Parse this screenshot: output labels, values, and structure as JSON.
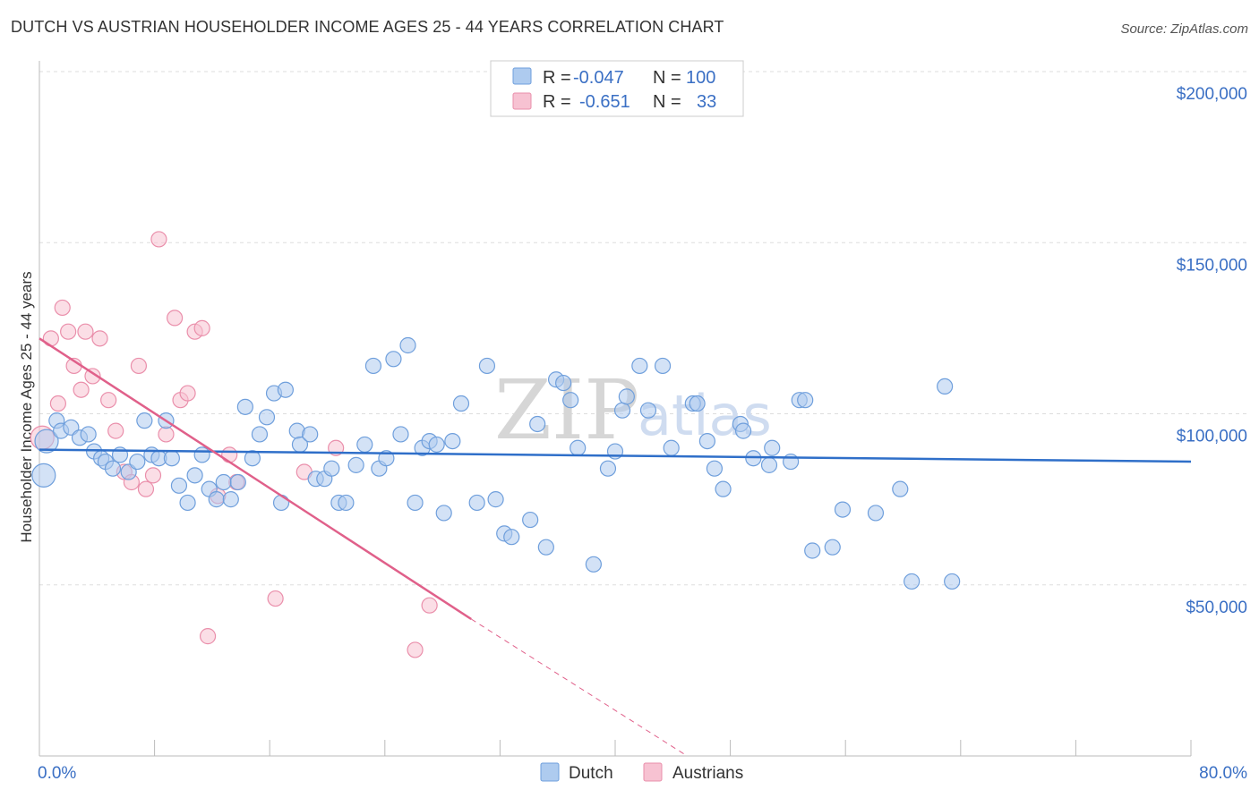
{
  "title": "DUTCH VS AUSTRIAN HOUSEHOLDER INCOME AGES 25 - 44 YEARS CORRELATION CHART",
  "source": "Source: ZipAtlas.com",
  "watermark": {
    "zip": "ZIP",
    "atlas": "atlas"
  },
  "stats": [
    {
      "r_label": "R =",
      "r_value": "-0.047",
      "n_label": "N =",
      "n_value": "100"
    },
    {
      "r_label": "R =",
      "r_value": "-0.651",
      "n_label": "N =",
      "n_value": "33"
    }
  ],
  "colors": {
    "dutch_fill": "#aecbef",
    "dutch_stroke": "#6f9fdc",
    "dutch_line": "#2f6fc9",
    "austrian_fill": "#f7c2d2",
    "austrian_stroke": "#ea8fab",
    "austrian_line": "#e0608a",
    "grid": "#dddddd",
    "axis": "#bbbbbb",
    "tick_text": "#3a6fc4"
  },
  "chart_data": {
    "type": "scatter",
    "title": "DUTCH VS AUSTRIAN HOUSEHOLDER INCOME AGES 25 - 44 YEARS CORRELATION CHART",
    "xlabel": "",
    "ylabel": "Householder Income Ages 25 - 44 years",
    "xlim": [
      0,
      80
    ],
    "ylim": [
      0,
      200000
    ],
    "x_tick_labels": [
      "0.0%",
      "80.0%"
    ],
    "y_ticks": [
      50000,
      100000,
      150000,
      200000
    ],
    "y_tick_labels": [
      "$50,000",
      "$100,000",
      "$150,000",
      "$200,000"
    ],
    "grid": true,
    "legend_position": "bottom-center",
    "series": [
      {
        "name": "Dutch",
        "trend": {
          "x": [
            0,
            80
          ],
          "y": [
            89500,
            86000
          ]
        },
        "points": [
          [
            0.3,
            82000
          ],
          [
            0.5,
            92000
          ],
          [
            1.2,
            98000
          ],
          [
            1.5,
            95000
          ],
          [
            2.2,
            96000
          ],
          [
            2.8,
            93000
          ],
          [
            3.4,
            94000
          ],
          [
            3.8,
            89000
          ],
          [
            4.3,
            87000
          ],
          [
            4.6,
            86000
          ],
          [
            5.1,
            84000
          ],
          [
            5.6,
            88000
          ],
          [
            6.2,
            83000
          ],
          [
            6.8,
            86000
          ],
          [
            7.3,
            98000
          ],
          [
            7.8,
            88000
          ],
          [
            8.3,
            87000
          ],
          [
            8.8,
            98000
          ],
          [
            9.2,
            87000
          ],
          [
            9.7,
            79000
          ],
          [
            10.3,
            74000
          ],
          [
            10.8,
            82000
          ],
          [
            11.3,
            88000
          ],
          [
            11.8,
            78000
          ],
          [
            12.3,
            75000
          ],
          [
            12.8,
            80000
          ],
          [
            13.3,
            75000
          ],
          [
            13.8,
            80000
          ],
          [
            14.3,
            102000
          ],
          [
            14.8,
            87000
          ],
          [
            15.3,
            94000
          ],
          [
            15.8,
            99000
          ],
          [
            16.3,
            106000
          ],
          [
            16.8,
            74000
          ],
          [
            17.1,
            107000
          ],
          [
            17.9,
            95000
          ],
          [
            18.1,
            91000
          ],
          [
            18.8,
            94000
          ],
          [
            19.2,
            81000
          ],
          [
            19.8,
            81000
          ],
          [
            20.3,
            84000
          ],
          [
            20.8,
            74000
          ],
          [
            21.3,
            74000
          ],
          [
            22.0,
            85000
          ],
          [
            22.6,
            91000
          ],
          [
            23.2,
            114000
          ],
          [
            23.6,
            84000
          ],
          [
            24.1,
            87000
          ],
          [
            24.6,
            116000
          ],
          [
            25.1,
            94000
          ],
          [
            25.6,
            120000
          ],
          [
            26.1,
            74000
          ],
          [
            26.6,
            90000
          ],
          [
            27.1,
            92000
          ],
          [
            27.6,
            91000
          ],
          [
            28.1,
            71000
          ],
          [
            28.7,
            92000
          ],
          [
            29.3,
            103000
          ],
          [
            30.4,
            74000
          ],
          [
            31.1,
            114000
          ],
          [
            31.7,
            75000
          ],
          [
            32.3,
            65000
          ],
          [
            32.8,
            64000
          ],
          [
            34.1,
            69000
          ],
          [
            34.6,
            97000
          ],
          [
            35.2,
            61000
          ],
          [
            35.9,
            110000
          ],
          [
            36.4,
            109000
          ],
          [
            36.9,
            104000
          ],
          [
            37.4,
            90000
          ],
          [
            38.5,
            56000
          ],
          [
            39.5,
            84000
          ],
          [
            40.0,
            89000
          ],
          [
            40.5,
            101000
          ],
          [
            40.8,
            105000
          ],
          [
            41.7,
            114000
          ],
          [
            42.3,
            101000
          ],
          [
            43.3,
            114000
          ],
          [
            43.9,
            90000
          ],
          [
            45.4,
            103000
          ],
          [
            45.7,
            103000
          ],
          [
            46.4,
            92000
          ],
          [
            46.9,
            84000
          ],
          [
            47.5,
            78000
          ],
          [
            48.7,
            97000
          ],
          [
            48.9,
            95000
          ],
          [
            49.6,
            87000
          ],
          [
            50.7,
            85000
          ],
          [
            50.9,
            90000
          ],
          [
            52.2,
            86000
          ],
          [
            52.8,
            104000
          ],
          [
            53.2,
            104000
          ],
          [
            53.7,
            60000
          ],
          [
            55.1,
            61000
          ],
          [
            55.8,
            72000
          ],
          [
            58.1,
            71000
          ],
          [
            59.8,
            78000
          ],
          [
            60.6,
            51000
          ],
          [
            62.9,
            108000
          ],
          [
            63.4,
            51000
          ]
        ]
      },
      {
        "name": "Austrians",
        "trend": {
          "x": [
            0,
            30
          ],
          "y": [
            122000,
            40000
          ]
        },
        "trend_dashed": {
          "x": [
            30,
            45
          ],
          "y": [
            40000,
            0
          ]
        },
        "points": [
          [
            0.2,
            93000
          ],
          [
            0.8,
            122000
          ],
          [
            1.3,
            103000
          ],
          [
            1.6,
            131000
          ],
          [
            2.0,
            124000
          ],
          [
            2.4,
            114000
          ],
          [
            2.9,
            107000
          ],
          [
            3.2,
            124000
          ],
          [
            3.7,
            111000
          ],
          [
            4.2,
            122000
          ],
          [
            4.8,
            104000
          ],
          [
            5.3,
            95000
          ],
          [
            5.9,
            83000
          ],
          [
            6.4,
            80000
          ],
          [
            6.9,
            114000
          ],
          [
            7.4,
            78000
          ],
          [
            7.9,
            82000
          ],
          [
            8.3,
            151000
          ],
          [
            8.8,
            94000
          ],
          [
            9.4,
            128000
          ],
          [
            9.8,
            104000
          ],
          [
            10.3,
            106000
          ],
          [
            10.8,
            124000
          ],
          [
            11.3,
            125000
          ],
          [
            11.7,
            35000
          ],
          [
            12.4,
            76000
          ],
          [
            13.2,
            88000
          ],
          [
            13.7,
            80000
          ],
          [
            16.4,
            46000
          ],
          [
            18.4,
            83000
          ],
          [
            20.6,
            90000
          ],
          [
            26.1,
            31000
          ],
          [
            27.1,
            44000
          ]
        ]
      }
    ]
  }
}
